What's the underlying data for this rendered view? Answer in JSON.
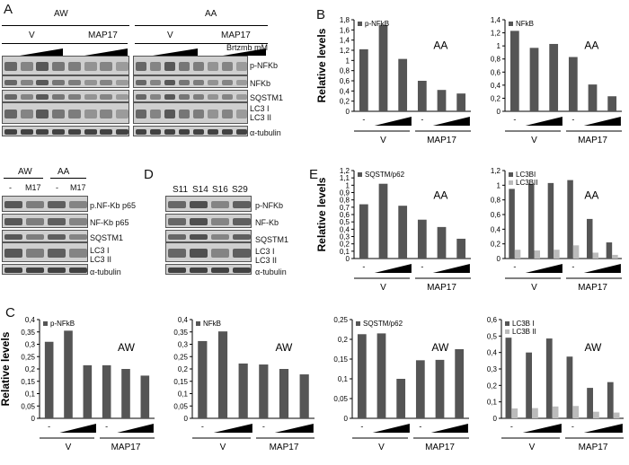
{
  "panels": {
    "A": {
      "letter": "A",
      "groups": [
        "AW",
        "AA"
      ],
      "lanes": [
        "V",
        "MAP17"
      ],
      "dose_label": "Brtzmb mM",
      "dash": "-",
      "proteins": [
        "p-NFKb",
        "NFKb",
        "SQSTM1",
        "LC3 I",
        "LC3 II",
        "α-tubulin"
      ]
    },
    "B": {
      "letter": "B"
    },
    "C": {
      "letter": "C"
    },
    "D": {
      "letter": "D",
      "samples": [
        "S11",
        "S14",
        "S16",
        "S29"
      ],
      "proteins": [
        "p-NFKb",
        "NF-Kb",
        "SQSTM1",
        "LC3 I",
        "LC3 II",
        "α-tubulin"
      ]
    },
    "E": {
      "letter": "E"
    },
    "AWAA_small": {
      "groups": [
        "AW",
        "AA"
      ],
      "cols": [
        "-",
        "M17",
        "-",
        "M17"
      ],
      "proteins": [
        "p.NF-Kb p65",
        "NF-Kb p65",
        "SQSTM1",
        "LC3 I",
        "LC3 II",
        "α-tubulin"
      ]
    }
  },
  "chart_data": [
    {
      "id": "B1",
      "type": "bar",
      "series": [
        {
          "name": "p-NFkB",
          "values": [
            1.22,
            1.7,
            1.03,
            0.6,
            0.42,
            0.35
          ]
        }
      ],
      "ylim": [
        0,
        1.8
      ],
      "yticks": [
        "0",
        "0,2",
        "0,4",
        "0,6",
        "0,8",
        "1",
        "1,2",
        "1,4",
        "1,6",
        "1,8"
      ],
      "ylabel": "Relative levels",
      "label": "AA",
      "groups": [
        "V",
        "MAP17"
      ],
      "dash": "-"
    },
    {
      "id": "B2",
      "type": "bar",
      "series": [
        {
          "name": "NFkB",
          "values": [
            1.23,
            0.97,
            1.03,
            0.83,
            0.41,
            0.23
          ]
        }
      ],
      "ylim": [
        0,
        1.4
      ],
      "yticks": [
        "0",
        "0,2",
        "0,4",
        "0,6",
        "0,8",
        "1",
        "1,2",
        "1,4"
      ],
      "ylabel": "",
      "label": "AA",
      "groups": [
        "V",
        "MAP17"
      ],
      "dash": "-"
    },
    {
      "id": "E1",
      "type": "bar",
      "series": [
        {
          "name": "SQSTM/p62",
          "values": [
            0.74,
            1.02,
            0.72,
            0.53,
            0.43,
            0.27
          ]
        }
      ],
      "ylim": [
        0,
        1.2
      ],
      "yticks": [
        "0",
        "0,1",
        "0,2",
        "0,3",
        "0,4",
        "0,5",
        "0,6",
        "0,7",
        "0,8",
        "0,9",
        "1",
        "1,1",
        "1,2"
      ],
      "ylabel": "Relative levels",
      "label": "AA",
      "groups": [
        "V",
        "MAP17"
      ],
      "dash": "-"
    },
    {
      "id": "E2",
      "type": "bar",
      "series": [
        {
          "name": "LC3BI",
          "values": [
            0.95,
            1.02,
            1.03,
            1.07,
            0.54,
            0.22
          ]
        },
        {
          "name": "LC3BII",
          "values": [
            0.12,
            0.11,
            0.12,
            0.18,
            0.08,
            0.05
          ]
        }
      ],
      "ylim": [
        0,
        1.2
      ],
      "yticks": [
        "0",
        "0,2",
        "0,4",
        "0,6",
        "0,8",
        "1",
        "1,2"
      ],
      "ylabel": "",
      "label": "AA",
      "groups": [
        "V",
        "MAP17"
      ],
      "dash": "-"
    },
    {
      "id": "C1",
      "type": "bar",
      "series": [
        {
          "name": "p-NFkB",
          "values": [
            0.31,
            0.355,
            0.215,
            0.215,
            0.2,
            0.173
          ]
        }
      ],
      "ylim": [
        0,
        0.4
      ],
      "yticks": [
        "0",
        "0,05",
        "0,1",
        "0,15",
        "0,2",
        "0,25",
        "0,3",
        "0,35",
        "0,4"
      ],
      "ylabel": "Relative levels",
      "label": "AW",
      "groups": [
        "V",
        "MAP17"
      ],
      "dash": "-"
    },
    {
      "id": "C2",
      "type": "bar",
      "series": [
        {
          "name": "NFkB",
          "values": [
            0.313,
            0.352,
            0.222,
            0.218,
            0.2,
            0.178
          ]
        }
      ],
      "ylim": [
        0,
        0.4
      ],
      "yticks": [
        "0",
        "0,05",
        "0,1",
        "0,15",
        "0,2",
        "0,25",
        "0,3",
        "0,35",
        "0,4"
      ],
      "ylabel": "",
      "label": "AW",
      "groups": [
        "V",
        "MAP17"
      ],
      "dash": "-"
    },
    {
      "id": "C3",
      "type": "bar",
      "series": [
        {
          "name": "SQSTM/p62",
          "values": [
            0.213,
            0.215,
            0.1,
            0.147,
            0.148,
            0.175
          ]
        }
      ],
      "ylim": [
        0,
        0.25
      ],
      "yticks": [
        "0",
        "0,05",
        "0,1",
        "0,15",
        "0,2",
        "0,25"
      ],
      "ylabel": "",
      "label": "AW",
      "groups": [
        "V",
        "MAP17"
      ],
      "dash": "-"
    },
    {
      "id": "C4",
      "type": "bar",
      "series": [
        {
          "name": "LC3B I",
          "values": [
            0.49,
            0.4,
            0.485,
            0.375,
            0.185,
            0.22
          ]
        },
        {
          "name": "LC3B II",
          "values": [
            0.06,
            0.062,
            0.072,
            0.075,
            0.04,
            0.035
          ]
        }
      ],
      "ylim": [
        0,
        0.6
      ],
      "yticks": [
        "0",
        "0,1",
        "0,2",
        "0,3",
        "0,4",
        "0,5",
        "0,6"
      ],
      "ylabel": "",
      "label": "AW",
      "groups": [
        "V",
        "MAP17"
      ],
      "dash": "-"
    }
  ]
}
